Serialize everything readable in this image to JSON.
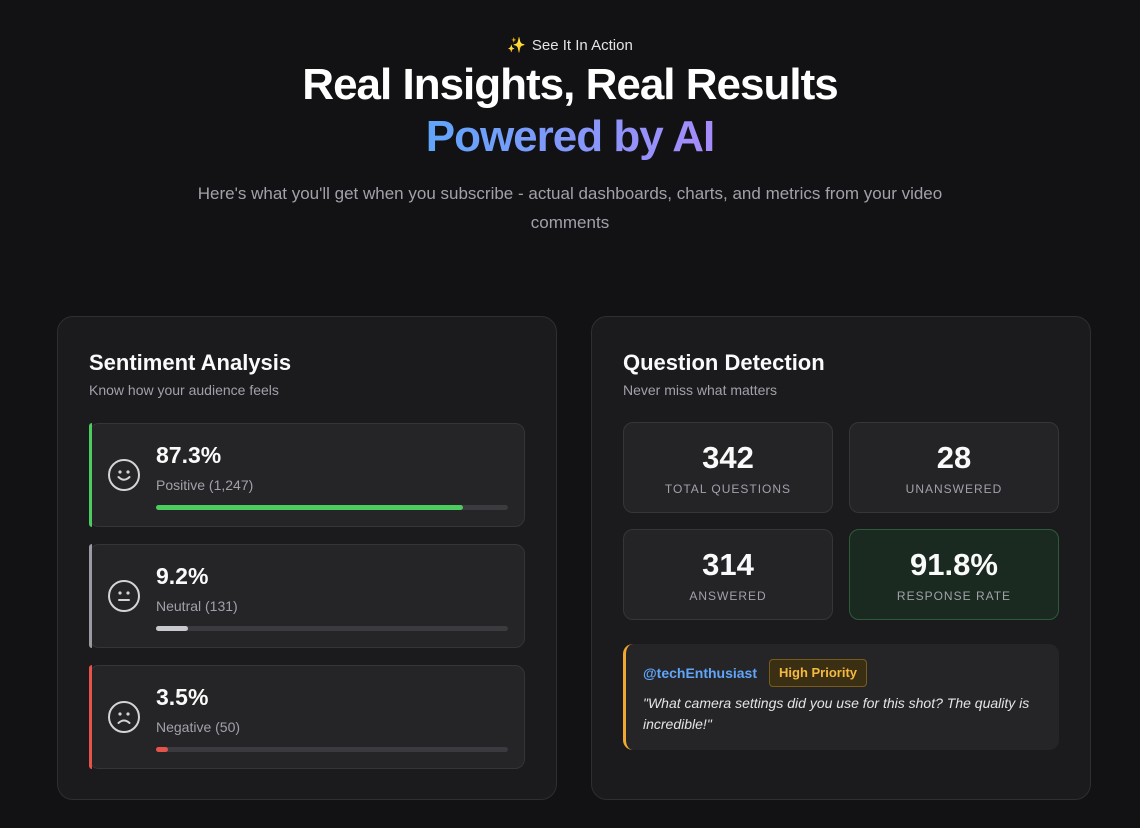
{
  "hero": {
    "eyebrow_icon": "sparkles-icon",
    "eyebrow": "See It In Action",
    "title_line1": "Real Insights, Real Results",
    "title_line2": "Powered by AI",
    "subtitle": "Here's what you'll get when you subscribe - actual dashboards, charts, and metrics from your video comments"
  },
  "sentiment": {
    "title": "Sentiment Analysis",
    "subtitle": "Know how your audience feels",
    "items": [
      {
        "icon": "happy-face-icon",
        "percent": "87.3%",
        "label": "Positive (1,247)",
        "value": 0.873,
        "color": "#4ccb5f"
      },
      {
        "icon": "neutral-face-icon",
        "percent": "9.2%",
        "label": "Neutral (131)",
        "value": 0.092,
        "color": "#c8c8cf"
      },
      {
        "icon": "sad-face-icon",
        "percent": "3.5%",
        "label": "Negative (50)",
        "value": 0.035,
        "color": "#e5534b"
      }
    ]
  },
  "questions": {
    "title": "Question Detection",
    "subtitle": "Never miss what matters",
    "stats": [
      {
        "value": "342",
        "label": "Total Questions"
      },
      {
        "value": "28",
        "label": "Unanswered"
      },
      {
        "value": "314",
        "label": "Answered"
      },
      {
        "value": "91.8%",
        "label": "Response Rate"
      }
    ],
    "example": {
      "handle": "@techEnthusiast",
      "badge": "High Priority",
      "text": "\"What camera settings did you use for this shot? The quality is incredible!\""
    }
  }
}
